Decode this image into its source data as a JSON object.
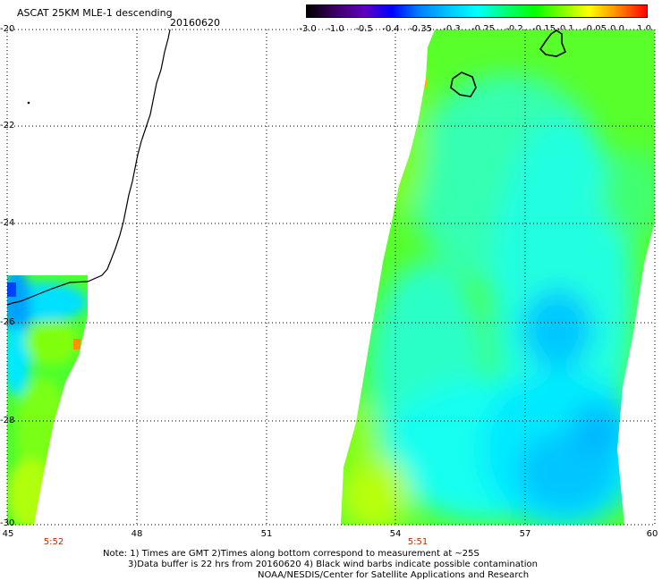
{
  "header": {
    "title": "ASCAT 25KM MLE-1 descending",
    "date": "20160620"
  },
  "colorbar": {
    "labels": [
      "-3.0",
      "-1.0",
      "-0.5",
      "-0.4",
      "-0.35",
      "-0.3",
      "-0.25",
      "-0.2",
      "-0.15",
      "-0.1",
      "-0.05",
      "0.0",
      "1.0"
    ],
    "colors": [
      "#000000",
      "#3a0060",
      "#6000c0",
      "#0000ff",
      "#0080ff",
      "#00c8ff",
      "#00ffff",
      "#00ff80",
      "#00ff00",
      "#80ff00",
      "#ffff00",
      "#ff8000",
      "#ff0000"
    ]
  },
  "axes": {
    "lon_labels": [
      "45",
      "48",
      "51",
      "54",
      "57",
      "60"
    ],
    "lat_labels": [
      "-20",
      "-22",
      "-24",
      "-26",
      "-28",
      "-30"
    ],
    "lon_range": [
      45,
      60
    ],
    "lat_range": [
      -20,
      -30
    ],
    "grid": "dotted"
  },
  "pass_times": [
    "5:52",
    "5:51"
  ],
  "notes": [
    "Note: 1) Times are GMT 2)Times along bottom correspond to measurement at ~25S",
    "3)Data buffer is 22 hrs from 20160620 4) Black wind barbs indicate possible contamination",
    "NOAA/NESDIS/Center for Satellite Applications and Research"
  ]
}
